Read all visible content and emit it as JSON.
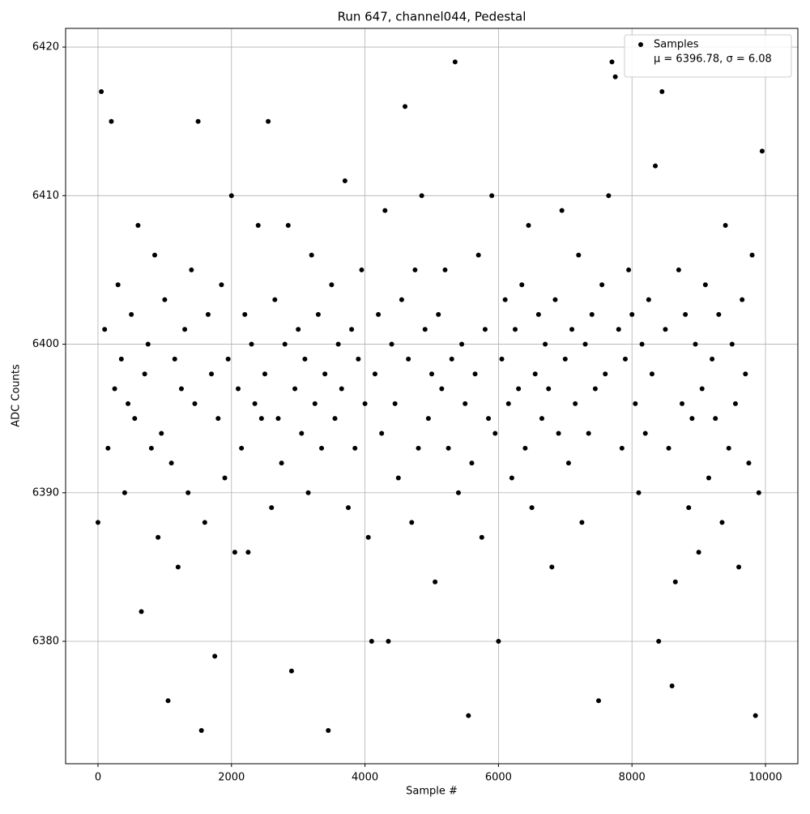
{
  "chart_data": {
    "type": "scatter",
    "title": "Run 647, channel044, Pedestal",
    "x_label": "Sample #",
    "y_label": "ADC Counts",
    "series": [
      {
        "name": "Samples",
        "color": "#000000",
        "x": [
          0,
          50,
          100,
          150,
          200,
          250,
          300,
          350,
          400,
          450,
          500,
          550,
          600,
          650,
          700,
          750,
          800,
          850,
          900,
          950,
          1000,
          1050,
          1100,
          1150,
          1200,
          1250,
          1300,
          1350,
          1400,
          1450,
          1500,
          1550,
          1600,
          1650,
          1700,
          1750,
          1800,
          1850,
          1900,
          1950,
          2000,
          2050,
          2100,
          2150,
          2200,
          2250,
          2300,
          2350,
          2400,
          2450,
          2500,
          2550,
          2600,
          2650,
          2700,
          2750,
          2800,
          2850,
          2900,
          2950,
          3000,
          3050,
          3100,
          3150,
          3200,
          3250,
          3300,
          3350,
          3400,
          3450,
          3500,
          3550,
          3600,
          3650,
          3700,
          3750,
          3800,
          3850,
          3900,
          3950,
          4000,
          4050,
          4100,
          4150,
          4200,
          4250,
          4300,
          4350,
          4400,
          4450,
          4500,
          4550,
          4600,
          4650,
          4700,
          4750,
          4800,
          4850,
          4900,
          4950,
          5000,
          5050,
          5100,
          5150,
          5200,
          5250,
          5300,
          5350,
          5400,
          5450,
          5500,
          5550,
          5600,
          5650,
          5700,
          5750,
          5800,
          5850,
          5900,
          5950,
          6000,
          6050,
          6100,
          6150,
          6200,
          6250,
          6300,
          6350,
          6400,
          6450,
          6500,
          6550,
          6600,
          6650,
          6700,
          6750,
          6800,
          6850,
          6900,
          6950,
          7000,
          7050,
          7100,
          7150,
          7200,
          7250,
          7300,
          7350,
          7400,
          7450,
          7500,
          7550,
          7600,
          7650,
          7700,
          7750,
          7800,
          7850,
          7900,
          7950,
          8000,
          8050,
          8100,
          8150,
          8200,
          8250,
          8300,
          8350,
          8400,
          8450,
          8500,
          8550,
          8600,
          8650,
          8700,
          8750,
          8800,
          8850,
          8900,
          8950,
          9000,
          9050,
          9100,
          9150,
          9200,
          9250,
          9300,
          9350,
          9400,
          9450,
          9500,
          9550,
          9600,
          9650,
          9700,
          9750,
          9800,
          9850,
          9900,
          9950
        ],
        "values": [
          6388,
          6417,
          6401,
          6393,
          6415,
          6397,
          6404,
          6399,
          6390,
          6396,
          6402,
          6395,
          6408,
          6382,
          6398,
          6400,
          6393,
          6406,
          6387,
          6394,
          6403,
          6376,
          6392,
          6399,
          6385,
          6397,
          6401,
          6390,
          6405,
          6396,
          6415,
          6374,
          6388,
          6402,
          6398,
          6379,
          6395,
          6404,
          6391,
          6399,
          6410,
          6386,
          6397,
          6393,
          6402,
          6386,
          6400,
          6396,
          6408,
          6395,
          6398,
          6415,
          6389,
          6403,
          6395,
          6392,
          6400,
          6408,
          6378,
          6397,
          6401,
          6394,
          6399,
          6390,
          6406,
          6396,
          6402,
          6393,
          6398,
          6374,
          6404,
          6395,
          6400,
          6397,
          6411,
          6389,
          6401,
          6393,
          6399,
          6405,
          6396,
          6387,
          6380,
          6398,
          6402,
          6394,
          6409,
          6380,
          6400,
          6396,
          6391,
          6403,
          6416,
          6399,
          6388,
          6405,
          6393,
          6410,
          6401,
          6395,
          6398,
          6384,
          6402,
          6397,
          6405,
          6393,
          6399,
          6419,
          6390,
          6400,
          6396,
          6375,
          6392,
          6398,
          6406,
          6387,
          6401,
          6395,
          6410,
          6394,
          6380,
          6399,
          6403,
          6396,
          6391,
          6401,
          6397,
          6404,
          6393,
          6408,
          6389,
          6398,
          6402,
          6395,
          6400,
          6397,
          6385,
          6403,
          6394,
          6409,
          6399,
          6392,
          6401,
          6396,
          6406,
          6388,
          6400,
          6394,
          6402,
          6397,
          6376,
          6404,
          6398,
          6410,
          6419,
          6418,
          6401,
          6393,
          6399,
          6405,
          6402,
          6396,
          6390,
          6400,
          6394,
          6403,
          6398,
          6412,
          6380,
          6417,
          6401,
          6393,
          6377,
          6384,
          6405,
          6396,
          6402,
          6389,
          6395,
          6400,
          6386,
          6397,
          6404,
          6391,
          6399,
          6395,
          6402,
          6388,
          6408,
          6393,
          6400,
          6396,
          6385,
          6403,
          6398,
          6392,
          6406,
          6375,
          6390,
          6413
        ]
      }
    ],
    "legend_note": "μ = 6396.78, σ = 6.08",
    "legend_position": "upper right",
    "xlim": [
      -485,
      10485
    ],
    "ylim": [
      6371.76,
      6421.26
    ],
    "xticks": [
      0,
      2000,
      4000,
      6000,
      8000,
      10000
    ],
    "yticks": [
      6380,
      6390,
      6400,
      6410,
      6420
    ],
    "grid": true
  }
}
